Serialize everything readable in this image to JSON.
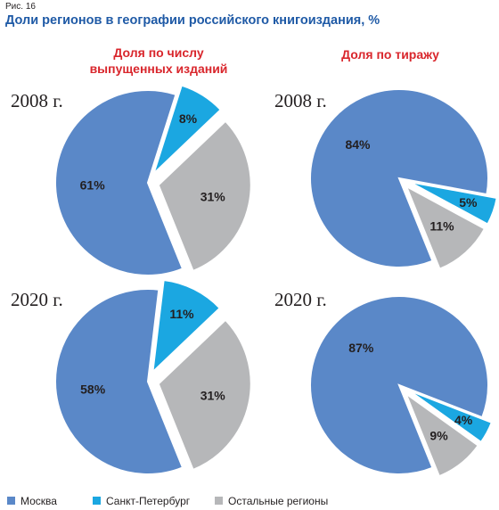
{
  "figure": {
    "label": "Рис. 16",
    "title": "Доли регионов в географии российского книгоиздания, %"
  },
  "chart_data": {
    "type": "pie",
    "columns": [
      {
        "title_line1": "Доля по числу",
        "title_line2": "выпущенных изданий"
      },
      {
        "title_line1": "Доля по тиражу",
        "title_line2": ""
      }
    ],
    "legend": [
      {
        "name": "Москва",
        "color": "#5a88c8"
      },
      {
        "name": "Санкт-Петербург",
        "color": "#1ba7e1"
      },
      {
        "name": "Остальные регионы",
        "color": "#b6b7b9"
      }
    ],
    "pies": [
      {
        "year": "2008 г.",
        "column": 0,
        "values": [
          61,
          8,
          31
        ],
        "labels": [
          "61%",
          "8%",
          "31%"
        ]
      },
      {
        "year": "2008 г.",
        "column": 1,
        "values": [
          84,
          5,
          11
        ],
        "labels": [
          "84%",
          "5%",
          "11%"
        ]
      },
      {
        "year": "2020 г.",
        "column": 0,
        "values": [
          58,
          11,
          31
        ],
        "labels": [
          "58%",
          "11%",
          "31%"
        ]
      },
      {
        "year": "2020 г.",
        "column": 1,
        "values": [
          87,
          4,
          9
        ],
        "labels": [
          "87%",
          "4%",
          "9%"
        ]
      }
    ]
  }
}
